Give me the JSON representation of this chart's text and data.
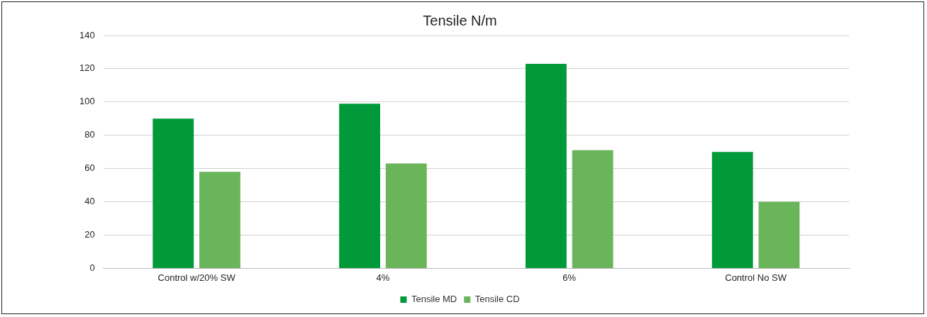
{
  "chart_data": {
    "type": "bar",
    "title": "Tensile N/m",
    "categories": [
      "Control w/20% SW",
      "4%",
      "6%",
      "Control No SW"
    ],
    "series": [
      {
        "name": "Tensile MD",
        "color": "#009a3a",
        "values": [
          90,
          99,
          123,
          70
        ]
      },
      {
        "name": "Tensile CD",
        "color": "#6ab55a",
        "values": [
          58,
          63,
          71,
          40
        ]
      }
    ],
    "ylim": [
      0,
      140
    ],
    "yticks": [
      0,
      20,
      40,
      60,
      80,
      100,
      120,
      140
    ],
    "grid": "y",
    "legend": "bottom"
  }
}
